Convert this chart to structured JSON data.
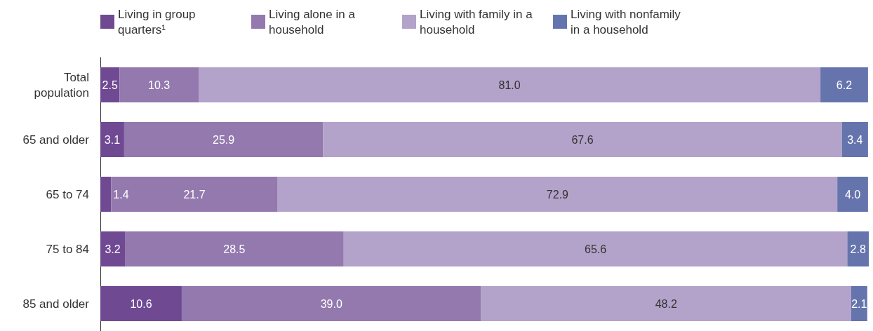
{
  "chart_data": {
    "type": "bar",
    "orientation": "horizontal",
    "stacked": true,
    "data_labels": true,
    "legend": "top left",
    "grid": false,
    "xlim": [
      0,
      100.1
    ],
    "categories": [
      "Total\npopulation",
      "65 and older",
      "65 to 74",
      "75 to 84",
      "85 and older"
    ],
    "series": [
      {
        "name": "Living in group quarters¹",
        "color": "#6f4a93",
        "values": [
          2.5,
          3.1,
          1.4,
          3.2,
          10.6
        ],
        "value_labels": [
          "2.5",
          "3.1",
          "1.4",
          "3.2",
          "10.6"
        ]
      },
      {
        "name": "Living alone in a household",
        "color": "#9379ae",
        "values": [
          10.3,
          25.9,
          21.7,
          28.5,
          39.0
        ],
        "value_labels": [
          "10.3",
          "25.9",
          "21.7",
          "28.5",
          "39.0"
        ]
      },
      {
        "name": "Living with family in a household",
        "color": "#b3a2c9",
        "values": [
          81.0,
          67.6,
          72.9,
          65.6,
          48.2
        ],
        "value_labels": [
          "81.0",
          "67.6",
          "72.9",
          "65.6",
          "48.2"
        ]
      },
      {
        "name": "Living with nonfamily in a household",
        "color": "#6674ad",
        "values": [
          6.2,
          3.4,
          4.0,
          2.8,
          2.1
        ],
        "value_labels": [
          "6.2",
          "3.4",
          "4.0",
          "2.8",
          "2.1"
        ]
      }
    ]
  }
}
